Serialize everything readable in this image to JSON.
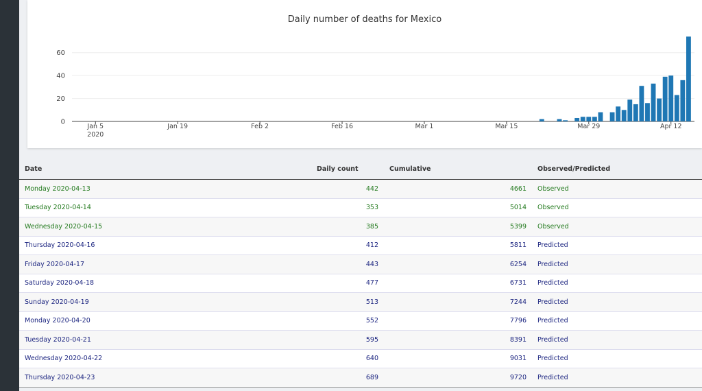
{
  "chart_data": {
    "type": "bar",
    "title": "Daily number of deaths for Mexico",
    "x": [
      "2020-03-21",
      "2020-03-22",
      "2020-03-23",
      "2020-03-24",
      "2020-03-25",
      "2020-03-26",
      "2020-03-27",
      "2020-03-28",
      "2020-03-29",
      "2020-03-30",
      "2020-03-31",
      "2020-04-01",
      "2020-04-02",
      "2020-04-03",
      "2020-04-04",
      "2020-04-05",
      "2020-04-06",
      "2020-04-07",
      "2020-04-08",
      "2020-04-09",
      "2020-04-10",
      "2020-04-11",
      "2020-04-12",
      "2020-04-13",
      "2020-04-14",
      "2020-04-15"
    ],
    "values": [
      2,
      0,
      0,
      2,
      1,
      0,
      3,
      4,
      4,
      4,
      8,
      0,
      8,
      13,
      10,
      19,
      15,
      31,
      16,
      33,
      20,
      39,
      40,
      23,
      36,
      74
    ],
    "color": "#1f77b4",
    "xlim": [
      "2020-01-01",
      "2020-04-16"
    ],
    "xticks": [
      {
        "value": "2020-01-05",
        "label": "Jan 5"
      },
      {
        "value": "2020-01-19",
        "label": "Jan 19"
      },
      {
        "value": "2020-02-02",
        "label": "Feb 2"
      },
      {
        "value": "2020-02-16",
        "label": "Feb 16"
      },
      {
        "value": "2020-03-01",
        "label": "Mar 1"
      },
      {
        "value": "2020-03-15",
        "label": "Mar 15"
      },
      {
        "value": "2020-03-29",
        "label": "Mar 29"
      },
      {
        "value": "2020-04-12",
        "label": "Apr 12"
      }
    ],
    "x_year_label": "2020",
    "ylim": [
      0,
      76
    ],
    "yticks": [
      0,
      20,
      40,
      60
    ],
    "grid": true
  },
  "table": {
    "columns": [
      "Date",
      "Daily count",
      "Cumulative",
      "Observed/Predicted"
    ],
    "status_colors": {
      "Observed": "#237a1e",
      "Predicted": "#1c2580"
    },
    "rows": [
      [
        "Monday 2020-04-13",
        442,
        4661,
        "Observed"
      ],
      [
        "Tuesday 2020-04-14",
        353,
        5014,
        "Observed"
      ],
      [
        "Wednesday 2020-04-15",
        385,
        5399,
        "Observed"
      ],
      [
        "Thursday 2020-04-16",
        412,
        5811,
        "Predicted"
      ],
      [
        "Friday 2020-04-17",
        443,
        6254,
        "Predicted"
      ],
      [
        "Saturday 2020-04-18",
        477,
        6731,
        "Predicted"
      ],
      [
        "Sunday 2020-04-19",
        513,
        7244,
        "Predicted"
      ],
      [
        "Monday 2020-04-20",
        552,
        7796,
        "Predicted"
      ],
      [
        "Tuesday 2020-04-21",
        595,
        8391,
        "Predicted"
      ],
      [
        "Wednesday 2020-04-22",
        640,
        9031,
        "Predicted"
      ],
      [
        "Thursday 2020-04-23",
        689,
        9720,
        "Predicted"
      ]
    ]
  }
}
